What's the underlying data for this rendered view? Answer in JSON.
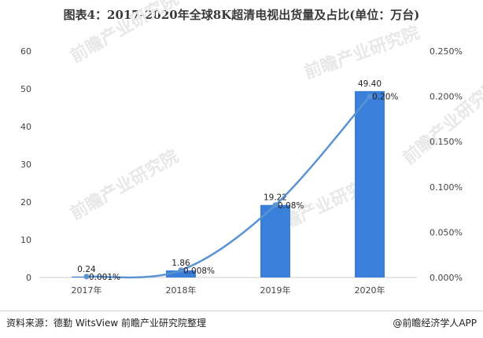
{
  "header": {
    "title": "图表4：2017-2020年全球8K超清电视出货量及占比(单位：万台)"
  },
  "chart_data": {
    "type": "bar",
    "categories": [
      "2017年",
      "2018年",
      "2019年",
      "2020年"
    ],
    "series": [
      {
        "type": "bar",
        "axis": "left",
        "values": [
          0.24,
          1.86,
          19.22,
          49.4
        ],
        "labels": [
          "0.24",
          "1.86",
          "19.22",
          "49.40"
        ],
        "color": "#3a7fd9"
      },
      {
        "type": "line",
        "axis": "right",
        "values": [
          0.001,
          0.008,
          0.08,
          0.2
        ],
        "labels": [
          "0.001%",
          "0.008%",
          "0.08%",
          "0.20%"
        ],
        "color": "#5b93d3"
      }
    ],
    "y_left": {
      "min": 0,
      "max": 60,
      "ticks": [
        "0",
        "10",
        "20",
        "30",
        "40",
        "50",
        "60"
      ]
    },
    "y_right": {
      "min": 0,
      "max": 0.25,
      "ticks": [
        "0.000%",
        "0.050%",
        "0.100%",
        "0.150%",
        "0.200%",
        "0.250%"
      ]
    },
    "grid": false,
    "legend": "none"
  },
  "watermark": {
    "text": "前瞻产业研究院",
    "color": "#e8e8e8"
  },
  "footer": {
    "source": "资料来源：德勤 WitsView 前瞻产业研究院整理",
    "brand": "@前瞻经济学人APP"
  }
}
